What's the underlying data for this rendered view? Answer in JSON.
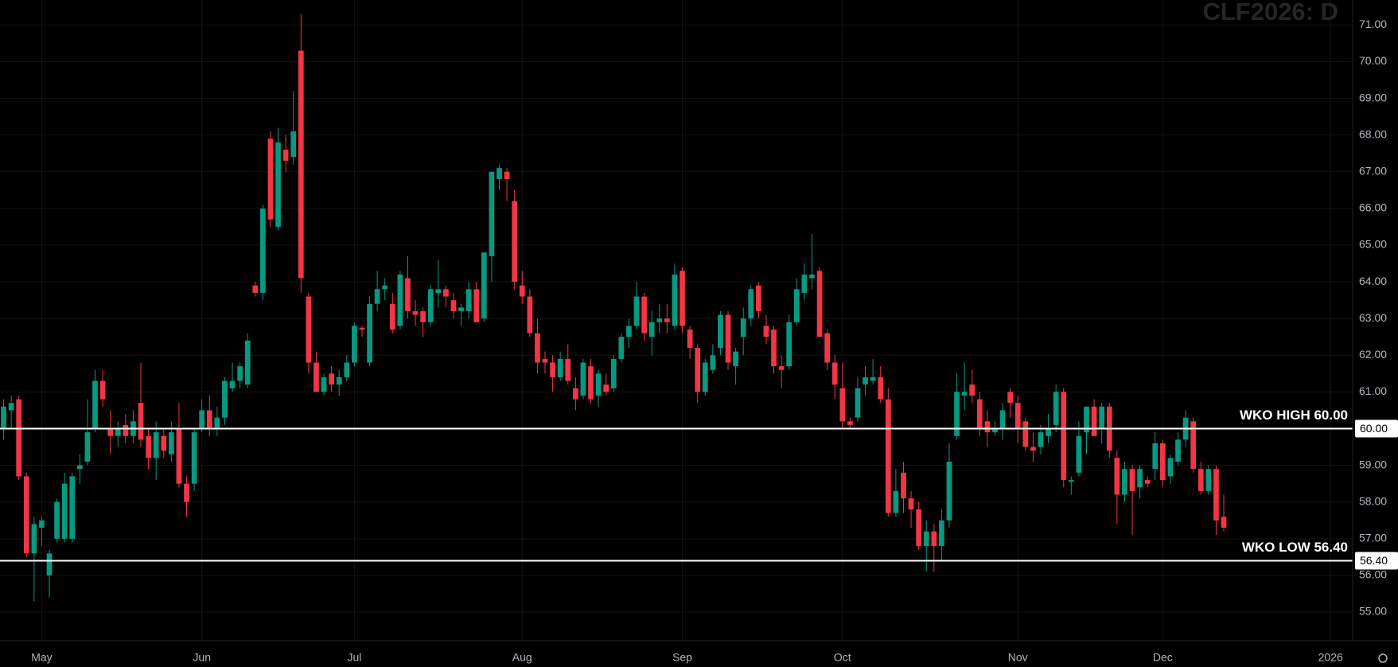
{
  "chart_data": {
    "type": "candlestick",
    "title": "CLF2026: D",
    "up_color": "#089981",
    "down_color": "#f23645",
    "grid": true,
    "ylim": [
      54.22,
      71.68
    ],
    "yticks": [
      {
        "value": 55,
        "label": "55.00"
      },
      {
        "value": 56,
        "label": "56.00"
      },
      {
        "value": 57,
        "label": "57.00"
      },
      {
        "value": 58,
        "label": "58.00"
      },
      {
        "value": 59,
        "label": "59.00"
      },
      {
        "value": 60,
        "label": "60.00"
      },
      {
        "value": 61,
        "label": "61.00"
      },
      {
        "value": 62,
        "label": "62.00"
      },
      {
        "value": 63,
        "label": "63.00"
      },
      {
        "value": 64,
        "label": "64.00"
      },
      {
        "value": 65,
        "label": "65.00"
      },
      {
        "value": 66,
        "label": "66.00"
      },
      {
        "value": 67,
        "label": "67.00"
      },
      {
        "value": 68,
        "label": "68.00"
      },
      {
        "value": 69,
        "label": "69.00"
      },
      {
        "value": 70,
        "label": "70.00"
      },
      {
        "value": 71,
        "label": "71.00"
      }
    ],
    "xlim": [
      -0.47,
      176.9
    ],
    "xticks": [
      {
        "value": 5,
        "label": "May"
      },
      {
        "value": 26,
        "label": "Jun"
      },
      {
        "value": 46,
        "label": "Jul"
      },
      {
        "value": 68,
        "label": "Aug"
      },
      {
        "value": 89,
        "label": "Sep"
      },
      {
        "value": 110,
        "label": "Oct"
      },
      {
        "value": 133,
        "label": "Nov"
      },
      {
        "value": 152,
        "label": "Dec"
      },
      {
        "value": 174,
        "label": "2026"
      }
    ],
    "annotations": [
      {
        "label": "WKO HIGH 60.00",
        "value": 60,
        "value_label": "60.00"
      },
      {
        "label": "WKO LOW 56.40",
        "value": 56.4,
        "value_label": "56.40"
      }
    ],
    "candles": [
      [
        60.0,
        60.8,
        59.7,
        60.6
      ],
      [
        60.5,
        60.9,
        60.0,
        60.7
      ],
      [
        60.8,
        60.9,
        58.6,
        58.7
      ],
      [
        58.7,
        58.8,
        56.5,
        56.6
      ],
      [
        56.6,
        57.6,
        55.3,
        57.4
      ],
      [
        57.3,
        57.6,
        56.8,
        57.5
      ],
      [
        56.0,
        56.7,
        55.4,
        56.6
      ],
      [
        57.0,
        58.1,
        56.9,
        58.0
      ],
      [
        57.0,
        58.8,
        56.9,
        58.5
      ],
      [
        57.0,
        58.8,
        56.9,
        58.7
      ],
      [
        58.9,
        59.3,
        58.5,
        59.0
      ],
      [
        59.1,
        60.8,
        59.0,
        59.9
      ],
      [
        60.0,
        61.6,
        59.9,
        61.3
      ],
      [
        61.3,
        61.6,
        60.6,
        60.8
      ],
      [
        60.0,
        60.5,
        59.3,
        59.8
      ],
      [
        59.8,
        60.2,
        59.5,
        60.0
      ],
      [
        60.1,
        60.4,
        59.6,
        59.8
      ],
      [
        59.8,
        60.5,
        59.6,
        60.2
      ],
      [
        60.7,
        61.8,
        59.5,
        59.7
      ],
      [
        59.8,
        60.0,
        58.9,
        59.2
      ],
      [
        59.2,
        60.2,
        58.6,
        59.9
      ],
      [
        59.8,
        60.0,
        59.2,
        59.4
      ],
      [
        59.3,
        60.2,
        59.1,
        59.9
      ],
      [
        60.0,
        60.7,
        58.4,
        58.5
      ],
      [
        58.5,
        58.7,
        57.6,
        58.0
      ],
      [
        58.5,
        60.0,
        58.3,
        59.9
      ],
      [
        60.0,
        60.8,
        59.9,
        60.5
      ],
      [
        60.5,
        60.9,
        59.8,
        60.0
      ],
      [
        60.0,
        60.6,
        59.8,
        60.3
      ],
      [
        60.3,
        61.4,
        60.1,
        61.3
      ],
      [
        61.1,
        61.8,
        61.0,
        61.3
      ],
      [
        61.3,
        61.8,
        61.1,
        61.7
      ],
      [
        61.2,
        62.6,
        61.1,
        62.4
      ],
      [
        63.9,
        64.0,
        63.6,
        63.7
      ],
      [
        63.7,
        66.1,
        63.5,
        66.0
      ],
      [
        67.9,
        68.1,
        65.5,
        65.7
      ],
      [
        65.5,
        68.2,
        65.4,
        67.8
      ],
      [
        67.6,
        68.0,
        67.0,
        67.3
      ],
      [
        67.4,
        69.2,
        67.2,
        68.1
      ],
      [
        70.3,
        71.3,
        63.7,
        64.1
      ],
      [
        63.6,
        63.7,
        61.5,
        61.8
      ],
      [
        61.8,
        62.1,
        61.0,
        61.0
      ],
      [
        61.0,
        61.5,
        60.9,
        61.4
      ],
      [
        61.5,
        61.7,
        61.0,
        61.2
      ],
      [
        61.2,
        61.6,
        60.9,
        61.4
      ],
      [
        61.4,
        62.0,
        61.3,
        61.8
      ],
      [
        61.8,
        62.9,
        61.7,
        62.8
      ],
      [
        62.75,
        62.8,
        62.5,
        62.7
      ],
      [
        61.8,
        63.6,
        61.7,
        63.4
      ],
      [
        63.4,
        64.3,
        63.2,
        63.8
      ],
      [
        63.8,
        64.1,
        63.5,
        63.9
      ],
      [
        63.4,
        63.7,
        62.6,
        62.7
      ],
      [
        62.8,
        64.3,
        62.7,
        64.2
      ],
      [
        64.1,
        64.7,
        63.0,
        63.2
      ],
      [
        63.2,
        63.5,
        62.8,
        63.1
      ],
      [
        63.2,
        63.3,
        62.5,
        62.9
      ],
      [
        62.9,
        63.9,
        62.8,
        63.8
      ],
      [
        63.7,
        64.6,
        63.3,
        63.8
      ],
      [
        63.8,
        63.9,
        63.3,
        63.6
      ],
      [
        63.5,
        63.7,
        63.0,
        63.2
      ],
      [
        63.2,
        63.4,
        62.8,
        63.3
      ],
      [
        63.2,
        64.0,
        63.0,
        63.8
      ],
      [
        63.8,
        64.0,
        62.9,
        62.9
      ],
      [
        63.0,
        64.8,
        62.9,
        64.8
      ],
      [
        64.7,
        67.0,
        64.0,
        67.0
      ],
      [
        66.8,
        67.2,
        66.5,
        67.1
      ],
      [
        67.0,
        67.1,
        66.2,
        66.8
      ],
      [
        66.2,
        66.5,
        63.8,
        64.0
      ],
      [
        63.9,
        64.3,
        63.4,
        63.6
      ],
      [
        63.6,
        63.8,
        62.5,
        62.6
      ],
      [
        62.6,
        63.0,
        61.5,
        61.8
      ],
      [
        61.9,
        62.1,
        61.5,
        61.8
      ],
      [
        61.8,
        62.0,
        61.0,
        61.4
      ],
      [
        61.4,
        62.1,
        61.3,
        61.9
      ],
      [
        61.9,
        62.3,
        61.2,
        61.3
      ],
      [
        61.1,
        61.4,
        60.5,
        60.8
      ],
      [
        60.9,
        61.9,
        60.8,
        61.8
      ],
      [
        61.7,
        61.9,
        60.7,
        60.8
      ],
      [
        60.9,
        61.6,
        60.6,
        61.5
      ],
      [
        61.2,
        61.5,
        60.9,
        61.0
      ],
      [
        61.1,
        62.0,
        61.0,
        61.9
      ],
      [
        61.9,
        62.6,
        61.8,
        62.5
      ],
      [
        62.5,
        63.0,
        62.2,
        62.8
      ],
      [
        62.8,
        64.0,
        62.7,
        63.6
      ],
      [
        63.6,
        63.7,
        62.4,
        62.6
      ],
      [
        62.5,
        63.2,
        62.0,
        62.9
      ],
      [
        62.9,
        63.4,
        62.6,
        63.0
      ],
      [
        63.0,
        63.4,
        62.6,
        62.9
      ],
      [
        62.8,
        64.5,
        62.7,
        64.2
      ],
      [
        64.3,
        64.4,
        62.6,
        62.8
      ],
      [
        62.7,
        62.8,
        61.9,
        62.2
      ],
      [
        62.2,
        62.3,
        60.7,
        61.0
      ],
      [
        61.0,
        61.9,
        60.9,
        61.8
      ],
      [
        61.6,
        62.3,
        61.5,
        62.0
      ],
      [
        62.2,
        63.2,
        62.0,
        63.1
      ],
      [
        63.1,
        63.2,
        61.6,
        61.8
      ],
      [
        61.7,
        62.2,
        61.2,
        62.1
      ],
      [
        62.5,
        63.3,
        62.0,
        63.0
      ],
      [
        63.0,
        63.9,
        62.8,
        63.8
      ],
      [
        63.9,
        64.0,
        63.0,
        63.2
      ],
      [
        62.8,
        63.1,
        62.3,
        62.5
      ],
      [
        62.7,
        62.8,
        61.5,
        61.7
      ],
      [
        61.7,
        62.0,
        61.1,
        61.6
      ],
      [
        61.7,
        63.1,
        61.6,
        62.9
      ],
      [
        62.9,
        64.1,
        62.8,
        63.8
      ],
      [
        63.7,
        64.5,
        63.5,
        64.2
      ],
      [
        64.1,
        65.3,
        63.8,
        64.2
      ],
      [
        64.3,
        64.4,
        62.5,
        62.5
      ],
      [
        62.6,
        62.7,
        61.6,
        61.8
      ],
      [
        61.8,
        62.0,
        60.8,
        61.2
      ],
      [
        61.1,
        61.8,
        60.0,
        60.2
      ],
      [
        60.2,
        60.3,
        60.0,
        60.1
      ],
      [
        60.3,
        61.4,
        60.2,
        61.1
      ],
      [
        61.2,
        61.7,
        60.9,
        61.4
      ],
      [
        61.3,
        61.9,
        61.2,
        61.4
      ],
      [
        61.4,
        61.7,
        60.7,
        60.8
      ],
      [
        60.8,
        61.1,
        57.6,
        57.7
      ],
      [
        57.7,
        58.9,
        57.6,
        58.3
      ],
      [
        58.8,
        59.1,
        57.7,
        58.1
      ],
      [
        58.1,
        58.3,
        57.3,
        57.8
      ],
      [
        57.8,
        58.0,
        56.7,
        56.8
      ],
      [
        56.8,
        57.5,
        56.1,
        57.2
      ],
      [
        57.2,
        57.4,
        56.1,
        56.8
      ],
      [
        56.8,
        57.8,
        56.4,
        57.5
      ],
      [
        57.5,
        59.6,
        57.3,
        59.1
      ],
      [
        59.8,
        61.5,
        59.7,
        61.0
      ],
      [
        60.9,
        61.8,
        60.5,
        61.0
      ],
      [
        61.2,
        61.6,
        60.7,
        60.9
      ],
      [
        60.8,
        61.0,
        59.8,
        60.0
      ],
      [
        60.2,
        60.5,
        59.5,
        59.9
      ],
      [
        59.9,
        60.2,
        59.8,
        60.0
      ],
      [
        60.0,
        60.7,
        59.7,
        60.5
      ],
      [
        61.0,
        61.1,
        60.3,
        60.7
      ],
      [
        60.7,
        60.9,
        59.6,
        60.0
      ],
      [
        60.2,
        60.3,
        59.4,
        59.5
      ],
      [
        59.5,
        59.9,
        59.1,
        59.4
      ],
      [
        59.5,
        60.1,
        59.3,
        59.9
      ],
      [
        59.8,
        60.4,
        59.6,
        60.0
      ],
      [
        60.1,
        61.2,
        59.9,
        61.0
      ],
      [
        61.0,
        61.1,
        58.4,
        58.6
      ],
      [
        58.55,
        58.7,
        58.2,
        58.6
      ],
      [
        58.8,
        60.2,
        58.7,
        59.8
      ],
      [
        59.9,
        60.6,
        59.3,
        60.6
      ],
      [
        60.6,
        60.8,
        59.8,
        59.8
      ],
      [
        60.0,
        60.7,
        59.6,
        60.6
      ],
      [
        60.6,
        60.7,
        59.2,
        59.4
      ],
      [
        59.2,
        59.4,
        57.4,
        58.2
      ],
      [
        58.2,
        59.1,
        58.0,
        58.9
      ],
      [
        58.9,
        59.0,
        57.1,
        58.3
      ],
      [
        58.4,
        59.0,
        58.1,
        58.9
      ],
      [
        58.6,
        58.7,
        58.4,
        58.5
      ],
      [
        58.9,
        59.9,
        58.6,
        59.6
      ],
      [
        59.6,
        59.7,
        58.4,
        58.6
      ],
      [
        58.7,
        59.3,
        58.5,
        59.2
      ],
      [
        59.1,
        59.9,
        59.0,
        59.7
      ],
      [
        59.7,
        60.5,
        59.5,
        60.3
      ],
      [
        60.2,
        60.3,
        58.8,
        58.9
      ],
      [
        58.9,
        59.1,
        58.2,
        58.3
      ],
      [
        58.3,
        59.0,
        58.2,
        58.9
      ],
      [
        58.9,
        59.0,
        57.1,
        57.5
      ],
      [
        57.6,
        58.2,
        57.2,
        57.3
      ]
    ]
  }
}
